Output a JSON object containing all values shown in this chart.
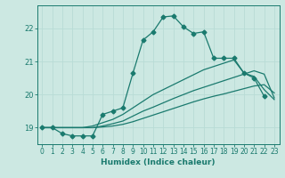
{
  "xlabel": "Humidex (Indice chaleur)",
  "bg_color": "#cce8e2",
  "grid_color": "#b0d8d0",
  "line_color": "#1a7a6e",
  "xlim": [
    -0.5,
    23.5
  ],
  "ylim": [
    18.5,
    22.7
  ],
  "yticks": [
    19,
    20,
    21,
    22
  ],
  "xticks": [
    0,
    1,
    2,
    3,
    4,
    5,
    6,
    7,
    8,
    9,
    10,
    11,
    12,
    13,
    14,
    15,
    16,
    17,
    18,
    19,
    20,
    21,
    22,
    23
  ],
  "line1_x": [
    0,
    1,
    2,
    3,
    4,
    5,
    6,
    7,
    8,
    9,
    10,
    11,
    12,
    13,
    14,
    15,
    16,
    17,
    18,
    19,
    20,
    21,
    22
  ],
  "line1_y": [
    19.0,
    19.0,
    18.82,
    18.75,
    18.75,
    18.75,
    19.4,
    19.5,
    19.6,
    20.65,
    21.65,
    21.9,
    22.35,
    22.38,
    22.05,
    21.85,
    21.9,
    21.1,
    21.1,
    21.1,
    20.65,
    20.5,
    19.95
  ],
  "line2_x": [
    0,
    1,
    2,
    3,
    4,
    5,
    6,
    7,
    8,
    9,
    10,
    11,
    12,
    13,
    14,
    15,
    16,
    17,
    18,
    19,
    20,
    21,
    22,
    23
  ],
  "line2_y": [
    19.0,
    19.0,
    19.0,
    19.0,
    19.0,
    19.05,
    19.15,
    19.25,
    19.4,
    19.6,
    19.8,
    20.0,
    20.15,
    20.3,
    20.45,
    20.6,
    20.75,
    20.85,
    20.95,
    21.05,
    20.65,
    20.55,
    20.15,
    19.85
  ],
  "line3_x": [
    0,
    1,
    2,
    3,
    4,
    5,
    6,
    7,
    8,
    9,
    10,
    11,
    12,
    13,
    14,
    15,
    16,
    17,
    18,
    19,
    20,
    21,
    22,
    23
  ],
  "line3_y": [
    19.0,
    19.0,
    19.0,
    19.0,
    19.0,
    19.0,
    19.05,
    19.12,
    19.2,
    19.35,
    19.5,
    19.62,
    19.75,
    19.88,
    20.0,
    20.12,
    20.22,
    20.32,
    20.42,
    20.52,
    20.62,
    20.72,
    20.62,
    19.9
  ],
  "line4_x": [
    0,
    1,
    2,
    3,
    4,
    5,
    6,
    7,
    8,
    9,
    10,
    11,
    12,
    13,
    14,
    15,
    16,
    17,
    18,
    19,
    20,
    21,
    22,
    23
  ],
  "line4_y": [
    19.0,
    19.0,
    19.0,
    19.0,
    19.0,
    19.0,
    19.02,
    19.05,
    19.1,
    19.18,
    19.28,
    19.38,
    19.48,
    19.58,
    19.68,
    19.78,
    19.87,
    19.95,
    20.02,
    20.1,
    20.18,
    20.26,
    20.3,
    20.05
  ]
}
